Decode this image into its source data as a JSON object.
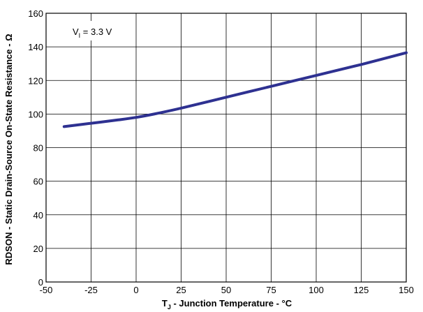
{
  "chart_data": {
    "type": "line",
    "xlabel": {
      "base": "T",
      "sub": "J",
      "rest": " - Junction Temperature - °C"
    },
    "ylabel": "RDSON - Static Drain-Source On-State Resistance - Ω",
    "xlim": [
      -50,
      150
    ],
    "ylim": [
      0,
      160
    ],
    "x_ticks": [
      -50,
      -25,
      0,
      25,
      50,
      75,
      100,
      125,
      150
    ],
    "y_ticks": [
      0,
      20,
      40,
      60,
      80,
      100,
      120,
      140,
      160
    ],
    "grid": true,
    "annotation": {
      "base": "V",
      "sub": "I",
      "rest": " = 3.3 V"
    },
    "series": [
      {
        "color": "#2e3191",
        "x": [
          -40,
          -25,
          -10,
          0,
          10,
          25,
          50,
          75,
          100,
          125,
          150
        ],
        "y": [
          92.5,
          94.5,
          96.5,
          98,
          100,
          103.5,
          110,
          116.5,
          123,
          129.5,
          136.5
        ]
      }
    ]
  }
}
